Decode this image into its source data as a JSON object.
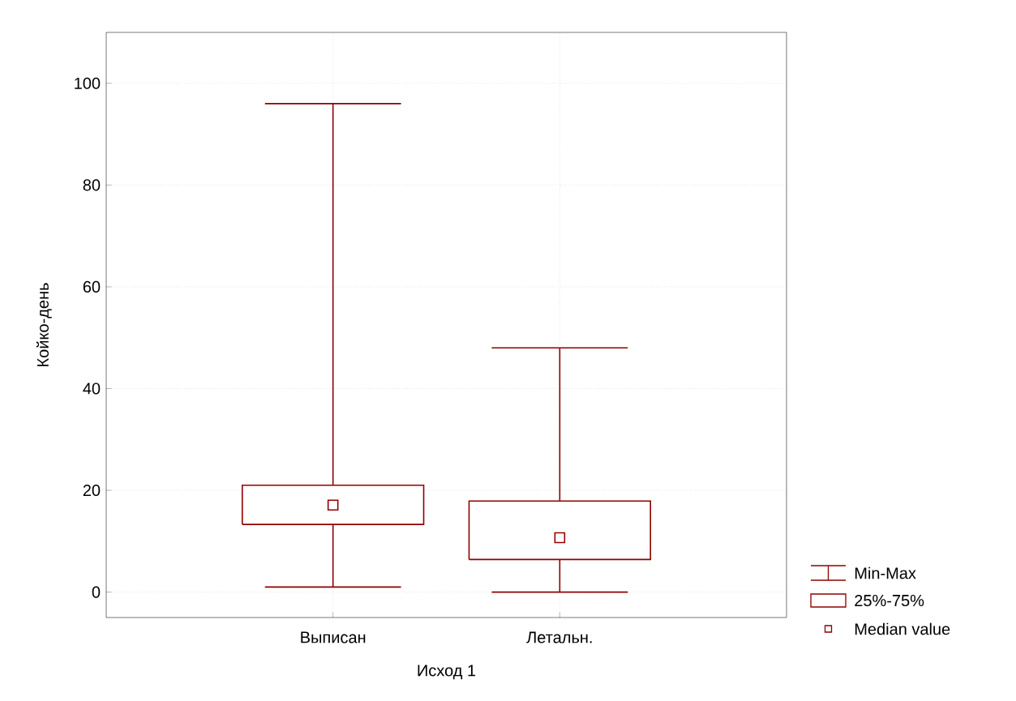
{
  "chart_data": {
    "type": "box",
    "xlabel": "Исход 1",
    "ylabel": "Койко-день",
    "categories": [
      "Выписан",
      "Летальн."
    ],
    "boxes": [
      {
        "low": 1,
        "q1": 13.3,
        "median": 17.1,
        "q3": 21,
        "high": 96
      },
      {
        "low": 0,
        "q1": 6.4,
        "median": 10.7,
        "q3": 17.9,
        "high": 48
      }
    ],
    "color": "#900000",
    "ylim": [
      -5,
      110
    ],
    "yticks": [
      0,
      20,
      40,
      60,
      80,
      100
    ],
    "grid": true,
    "annotations": [
      "Min-Max",
      "25%-75%",
      "Median value"
    ]
  }
}
